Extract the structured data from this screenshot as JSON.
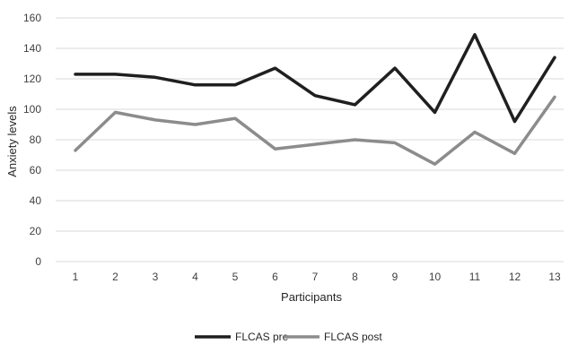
{
  "chart_data": {
    "type": "line",
    "title": "",
    "xlabel": "Participants",
    "ylabel": "Anxiety levels",
    "categories": [
      "1",
      "2",
      "3",
      "4",
      "5",
      "6",
      "7",
      "8",
      "9",
      "10",
      "11",
      "12",
      "13"
    ],
    "ylim": [
      0,
      160
    ],
    "yticks": [
      "0",
      "20",
      "40",
      "60",
      "80",
      "100",
      "120",
      "140",
      "160"
    ],
    "grid": true,
    "legend_position": "bottom",
    "series": [
      {
        "name": "FLCAS pre",
        "color": "#1f1f1f",
        "values": [
          123,
          123,
          121,
          116,
          116,
          127,
          109,
          103,
          127,
          98,
          149,
          92,
          134
        ]
      },
      {
        "name": "FLCAS post",
        "color": "#8c8c8c",
        "values": [
          73,
          98,
          93,
          90,
          94,
          74,
          77,
          80,
          78,
          64,
          85,
          71,
          108
        ]
      }
    ]
  }
}
